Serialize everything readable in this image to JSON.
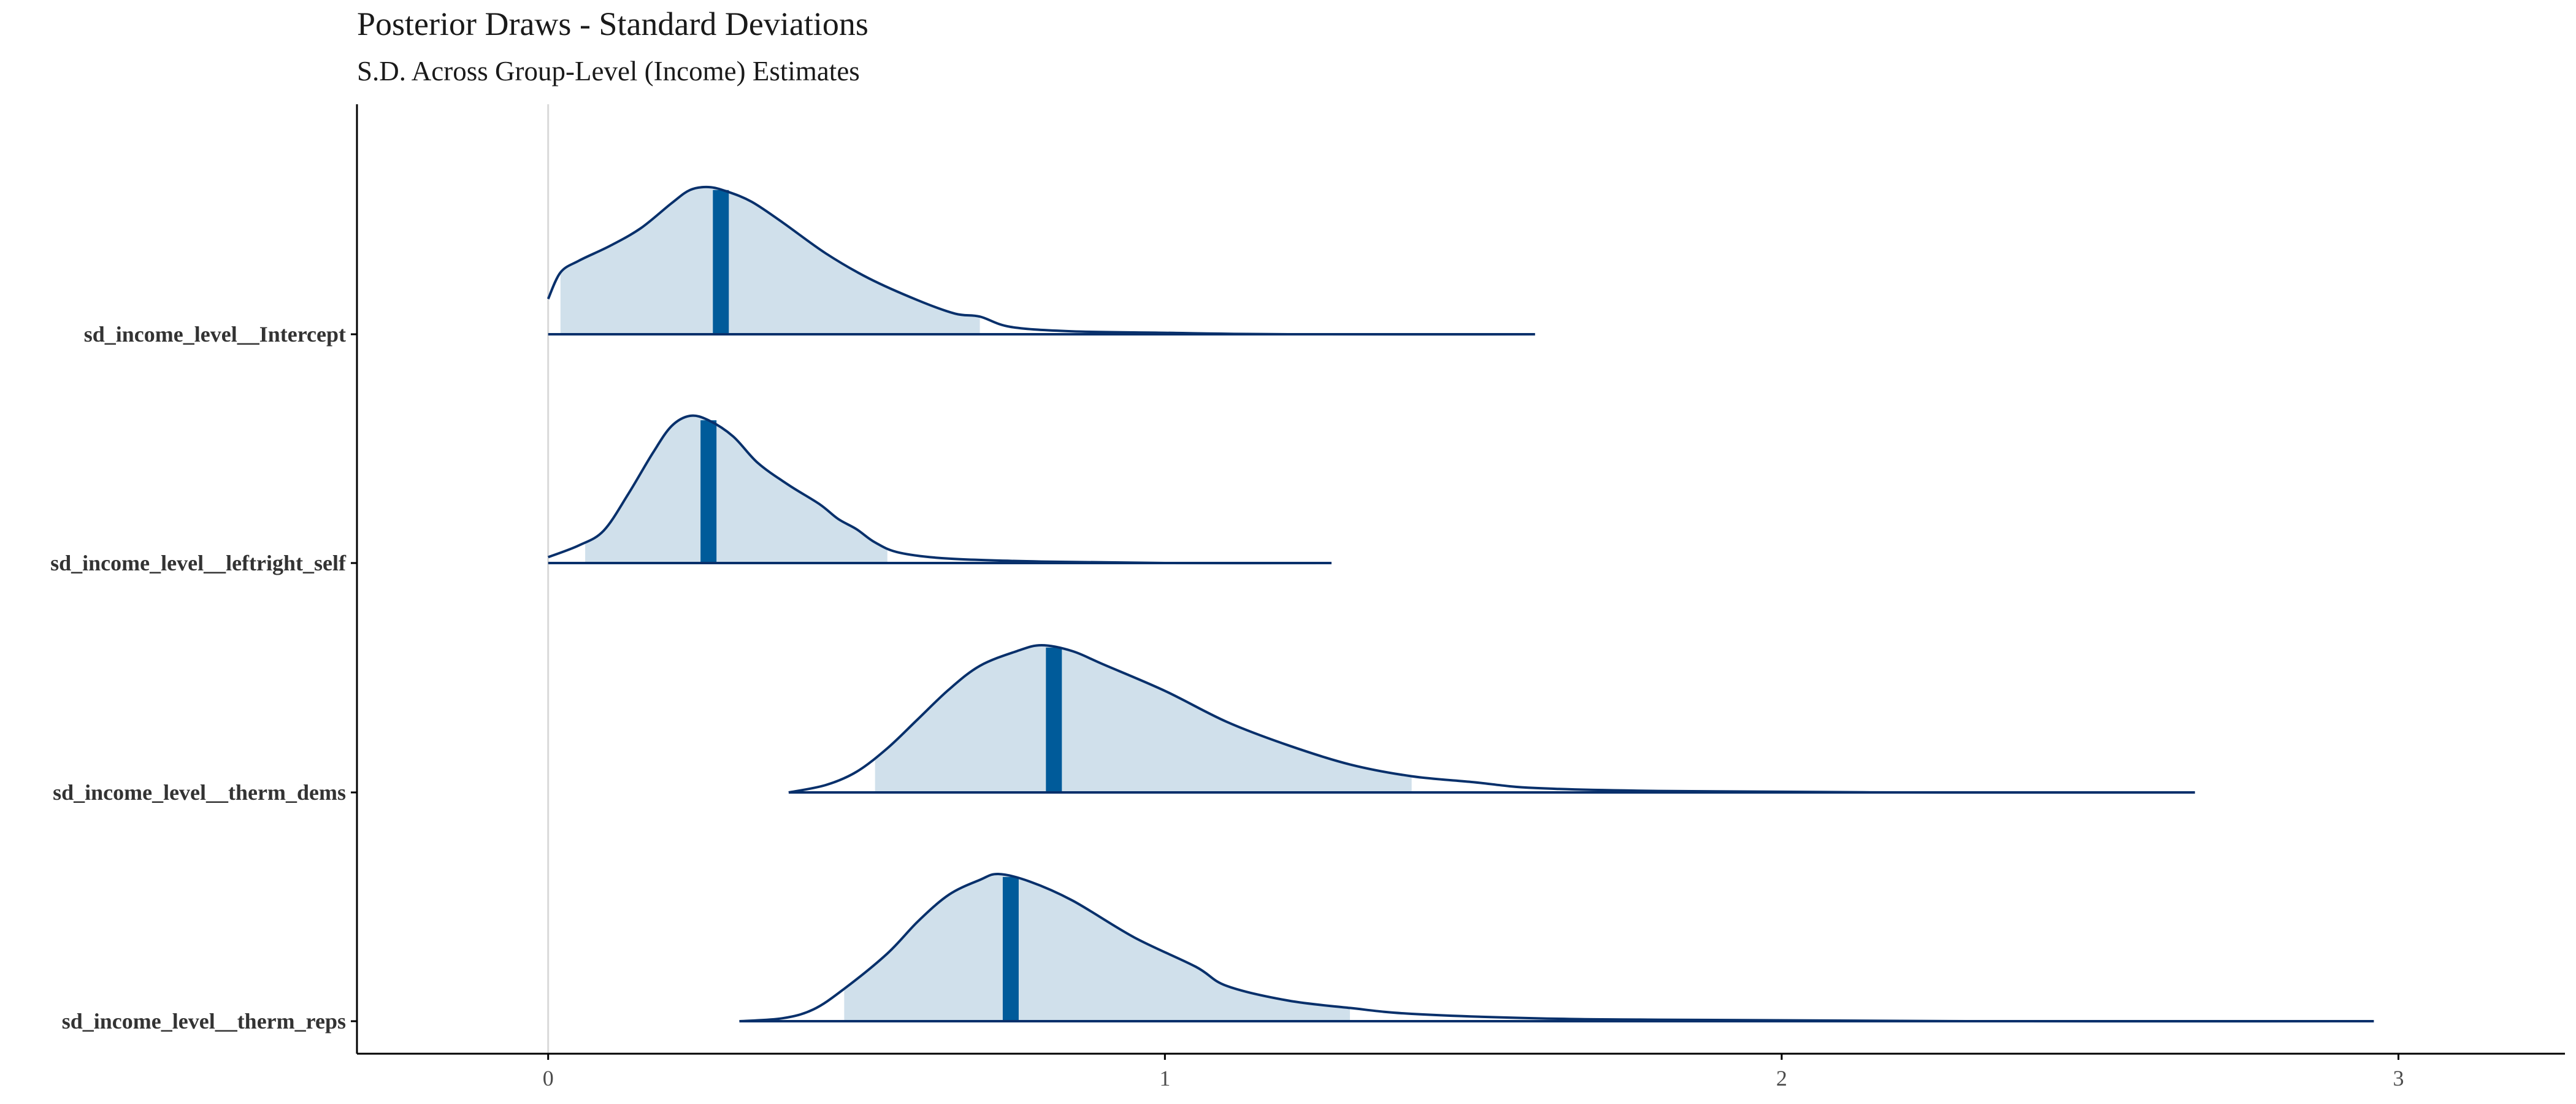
{
  "chart_data": {
    "type": "area",
    "subtype": "posterior-density-ridgeline",
    "title": "Posterior Draws - Standard Deviations",
    "subtitle": "S.D. Across Group-Level (Income) Estimates",
    "xlabel": "",
    "ylabel": "",
    "xlim": [
      -0.31,
      3.27
    ],
    "x_ticks": [
      "0",
      "1",
      "2",
      "3"
    ],
    "x_tick_values": [
      0,
      1,
      2,
      3
    ],
    "reference_line_x": 0,
    "grid": false,
    "legend": "none",
    "colors": {
      "outline": "#08306b",
      "interval_fill": "#d0e0eb",
      "median_bar": "#005b9a",
      "reference_line": "#d9d9d9",
      "axis": "#000000"
    },
    "series": [
      {
        "name": "sd_income_level__Intercept",
        "range": [
          0,
          1.6
        ],
        "interval": [
          0.02,
          0.7
        ],
        "median": 0.28,
        "density": [
          [
            0,
            0.24
          ],
          [
            0.02,
            0.42
          ],
          [
            0.05,
            0.5
          ],
          [
            0.1,
            0.6
          ],
          [
            0.15,
            0.72
          ],
          [
            0.2,
            0.89
          ],
          [
            0.23,
            0.98
          ],
          [
            0.26,
            1.0
          ],
          [
            0.29,
            0.97
          ],
          [
            0.33,
            0.9
          ],
          [
            0.38,
            0.76
          ],
          [
            0.45,
            0.55
          ],
          [
            0.52,
            0.38
          ],
          [
            0.6,
            0.23
          ],
          [
            0.66,
            0.14
          ],
          [
            0.7,
            0.12
          ],
          [
            0.75,
            0.05
          ],
          [
            0.85,
            0.02
          ],
          [
            1.0,
            0.01
          ],
          [
            1.2,
            0.0
          ],
          [
            1.6,
            0.0
          ]
        ]
      },
      {
        "name": "sd_income_level__leftright_self",
        "range": [
          0,
          1.27
        ],
        "interval": [
          0.06,
          0.55
        ],
        "median": 0.26,
        "density": [
          [
            0,
            0.04
          ],
          [
            0.05,
            0.12
          ],
          [
            0.09,
            0.22
          ],
          [
            0.13,
            0.47
          ],
          [
            0.17,
            0.75
          ],
          [
            0.2,
            0.93
          ],
          [
            0.23,
            1.0
          ],
          [
            0.26,
            0.97
          ],
          [
            0.3,
            0.86
          ],
          [
            0.34,
            0.68
          ],
          [
            0.39,
            0.53
          ],
          [
            0.44,
            0.4
          ],
          [
            0.47,
            0.3
          ],
          [
            0.5,
            0.23
          ],
          [
            0.53,
            0.14
          ],
          [
            0.57,
            0.07
          ],
          [
            0.65,
            0.03
          ],
          [
            0.8,
            0.01
          ],
          [
            1.0,
            0.0
          ],
          [
            1.27,
            0.0
          ]
        ]
      },
      {
        "name": "sd_income_level__therm_dems",
        "range": [
          0.39,
          2.67
        ],
        "interval": [
          0.53,
          1.4
        ],
        "median": 0.82,
        "density": [
          [
            0.39,
            0.0
          ],
          [
            0.45,
            0.05
          ],
          [
            0.5,
            0.14
          ],
          [
            0.55,
            0.3
          ],
          [
            0.6,
            0.5
          ],
          [
            0.65,
            0.7
          ],
          [
            0.7,
            0.86
          ],
          [
            0.76,
            0.96
          ],
          [
            0.8,
            1.0
          ],
          [
            0.85,
            0.96
          ],
          [
            0.9,
            0.87
          ],
          [
            1.0,
            0.69
          ],
          [
            1.1,
            0.48
          ],
          [
            1.2,
            0.32
          ],
          [
            1.3,
            0.19
          ],
          [
            1.4,
            0.11
          ],
          [
            1.5,
            0.07
          ],
          [
            1.6,
            0.03
          ],
          [
            1.8,
            0.01
          ],
          [
            2.2,
            0.0
          ],
          [
            2.67,
            0.0
          ]
        ]
      },
      {
        "name": "sd_income_level__therm_reps",
        "range": [
          0.31,
          2.96
        ],
        "interval": [
          0.48,
          1.3
        ],
        "median": 0.75,
        "density": [
          [
            0.31,
            0.0
          ],
          [
            0.38,
            0.02
          ],
          [
            0.43,
            0.08
          ],
          [
            0.48,
            0.22
          ],
          [
            0.55,
            0.46
          ],
          [
            0.6,
            0.68
          ],
          [
            0.65,
            0.86
          ],
          [
            0.7,
            0.96
          ],
          [
            0.73,
            1.0
          ],
          [
            0.78,
            0.95
          ],
          [
            0.85,
            0.82
          ],
          [
            0.95,
            0.57
          ],
          [
            1.05,
            0.37
          ],
          [
            1.1,
            0.24
          ],
          [
            1.2,
            0.14
          ],
          [
            1.3,
            0.09
          ],
          [
            1.4,
            0.05
          ],
          [
            1.6,
            0.02
          ],
          [
            1.8,
            0.01
          ],
          [
            2.3,
            0.0
          ],
          [
            2.96,
            0.0
          ]
        ]
      }
    ]
  }
}
